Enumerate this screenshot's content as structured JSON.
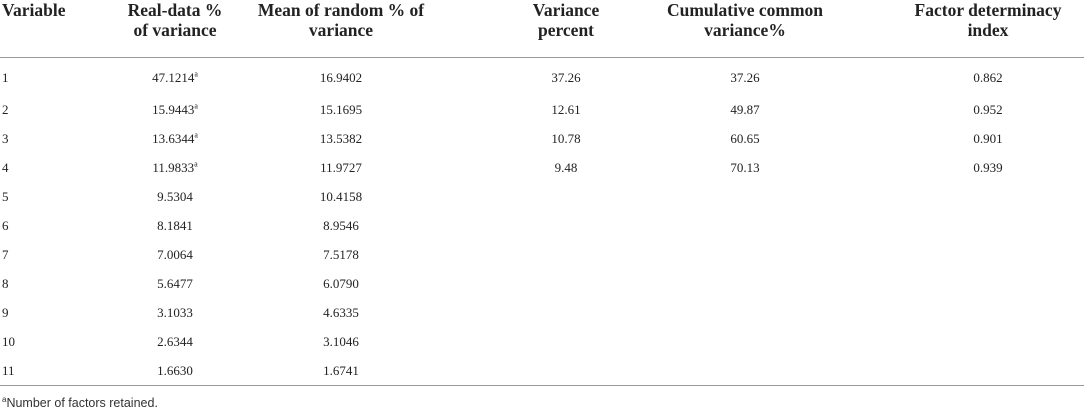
{
  "table": {
    "headers": [
      "Variable",
      "Real-data % of variance",
      "Mean of random % of variance",
      "Variance percent",
      "Cumulative common variance%",
      "Factor determinacy index"
    ],
    "marker": "a",
    "rows": [
      {
        "variable": "1",
        "real": "47.1214",
        "marked": true,
        "mean_random": "16.9402",
        "variance_percent": "37.26",
        "cumulative": "37.26",
        "fdi": "0.862"
      },
      {
        "variable": "2",
        "real": "15.9443",
        "marked": true,
        "mean_random": "15.1695",
        "variance_percent": "12.61",
        "cumulative": "49.87",
        "fdi": "0.952"
      },
      {
        "variable": "3",
        "real": "13.6344",
        "marked": true,
        "mean_random": "13.5382",
        "variance_percent": "10.78",
        "cumulative": "60.65",
        "fdi": "0.901"
      },
      {
        "variable": "4",
        "real": "11.9833",
        "marked": true,
        "mean_random": "11.9727",
        "variance_percent": "9.48",
        "cumulative": "70.13",
        "fdi": "0.939"
      },
      {
        "variable": "5",
        "real": "9.5304",
        "marked": false,
        "mean_random": "10.4158",
        "variance_percent": "",
        "cumulative": "",
        "fdi": ""
      },
      {
        "variable": "6",
        "real": "8.1841",
        "marked": false,
        "mean_random": "8.9546",
        "variance_percent": "",
        "cumulative": "",
        "fdi": ""
      },
      {
        "variable": "7",
        "real": "7.0064",
        "marked": false,
        "mean_random": "7.5178",
        "variance_percent": "",
        "cumulative": "",
        "fdi": ""
      },
      {
        "variable": "8",
        "real": "5.6477",
        "marked": false,
        "mean_random": "6.0790",
        "variance_percent": "",
        "cumulative": "",
        "fdi": ""
      },
      {
        "variable": "9",
        "real": "3.1033",
        "marked": false,
        "mean_random": "4.6335",
        "variance_percent": "",
        "cumulative": "",
        "fdi": ""
      },
      {
        "variable": "10",
        "real": "2.6344",
        "marked": false,
        "mean_random": "3.1046",
        "variance_percent": "",
        "cumulative": "",
        "fdi": ""
      },
      {
        "variable": "11",
        "real": "1.6630",
        "marked": false,
        "mean_random": "1.6741",
        "variance_percent": "",
        "cumulative": "",
        "fdi": ""
      }
    ]
  },
  "footnote": {
    "marker": "a",
    "text": "Number of factors retained."
  }
}
